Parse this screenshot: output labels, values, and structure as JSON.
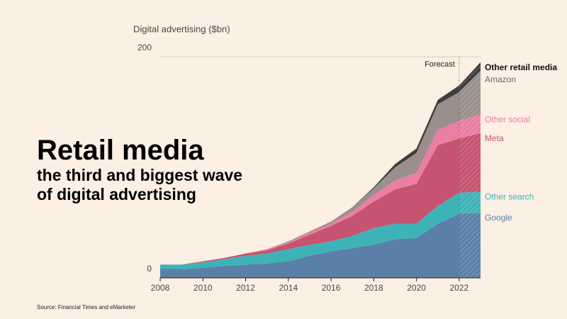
{
  "chart_data": {
    "type": "stacked_area",
    "headline": "Retail media",
    "subheadline": "the third and biggest wave of digital advertising",
    "y_axis_title": "Digital advertising ($bn)",
    "source": "Source: Financial Times and eMarketer",
    "forecast_label": "Forecast",
    "forecast_start": 2022,
    "x": [
      2008,
      2009,
      2010,
      2011,
      2012,
      2013,
      2014,
      2015,
      2016,
      2017,
      2018,
      2019,
      2020,
      2021,
      2022,
      2023
    ],
    "xlim": [
      2008,
      2023
    ],
    "xticks": [
      2008,
      2010,
      2012,
      2014,
      2016,
      2018,
      2020,
      2022
    ],
    "ylim": [
      0,
      200
    ],
    "yticks": [
      0,
      200
    ],
    "series": [
      {
        "name": "Google",
        "color": "#5b80a8",
        "values": [
          8,
          8,
          9,
          11,
          12,
          13,
          15,
          20,
          24,
          27,
          30,
          35,
          36,
          49,
          58,
          59
        ]
      },
      {
        "name": "Other search",
        "color": "#3db3b8",
        "values": [
          4,
          4,
          5,
          6,
          8,
          9,
          11,
          10,
          9,
          11,
          15,
          14,
          13,
          16,
          19,
          19
        ]
      },
      {
        "name": "Meta",
        "color": "#c6536f",
        "values": [
          0,
          0,
          1,
          1,
          2,
          3,
          5,
          9,
          14,
          18,
          24,
          31,
          36,
          55,
          49,
          53
        ]
      },
      {
        "name": "Other social",
        "color": "#ea7ea3",
        "values": [
          0,
          0,
          0,
          0,
          0,
          1,
          1,
          2,
          2,
          4,
          6,
          8,
          10,
          14,
          16,
          17
        ]
      },
      {
        "name": "Amazon",
        "color": "#9a8f8b",
        "values": [
          0,
          0,
          0,
          0,
          0,
          0,
          1,
          1,
          2,
          4,
          6,
          12,
          18,
          23,
          26,
          39
        ]
      },
      {
        "name": "Other retail media",
        "color": "#403e3c",
        "values": [
          0,
          0,
          0,
          0,
          0,
          0,
          0,
          0,
          0,
          0,
          1,
          3,
          4,
          4,
          6,
          8
        ]
      }
    ]
  }
}
